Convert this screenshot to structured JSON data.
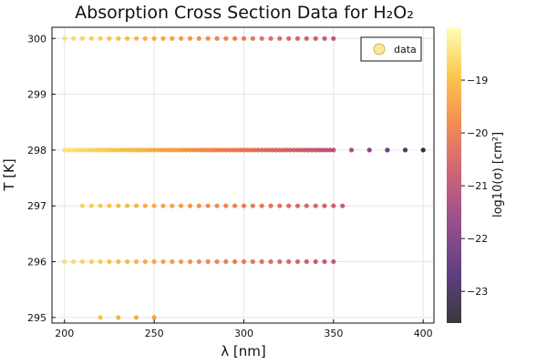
{
  "chart_data": {
    "type": "scatter",
    "title": "Absorption Cross Section Data for H₂O₂",
    "xlabel": "λ [nm]",
    "ylabel": "T [K]",
    "xlim": [
      193,
      406
    ],
    "ylim": [
      294.9,
      300.2
    ],
    "xticks": [
      "200",
      "250",
      "300",
      "350",
      "400"
    ],
    "yticks": [
      "295",
      "296",
      "297",
      "298",
      "299",
      "300"
    ],
    "legend": {
      "label": "data",
      "position": "top-right"
    },
    "colorbar": {
      "label": "log10(σ) [cm²]",
      "range": [
        -23.6,
        -18.0
      ],
      "ticks": [
        "-23",
        "-22",
        "-21",
        "-20",
        "-19"
      ],
      "colormap": [
        "#000004",
        "#320a5e",
        "#781c6d",
        "#bc3754",
        "#ed6925",
        "#fbb61a",
        "#fcffa4"
      ]
    },
    "grid": true,
    "series": [
      {
        "T": 300,
        "lambda_min": 200,
        "lambda_max": 350,
        "step": 5,
        "log_sigma_start": -18.5,
        "log_sigma_end": -20.9
      },
      {
        "T": 298,
        "lambda_min": 200,
        "lambda_max": 350,
        "step": 2,
        "log_sigma_start": -18.4,
        "log_sigma_end": -21.0
      },
      {
        "T": 298,
        "lambda_min": 360,
        "lambda_max": 400,
        "step": 10,
        "log_sigma_start": -21.3,
        "log_sigma_end": -23.5
      },
      {
        "T": 297,
        "lambda_min": 210,
        "lambda_max": 355,
        "step": 5,
        "log_sigma_start": -18.7,
        "log_sigma_end": -20.8
      },
      {
        "T": 296,
        "lambda_min": 200,
        "lambda_max": 350,
        "step": 5,
        "log_sigma_start": -18.5,
        "log_sigma_end": -20.9
      },
      {
        "T": 295,
        "lambda_min": 220,
        "lambda_max": 250,
        "step": 10,
        "log_sigma_start": -19.0,
        "log_sigma_end": -19.4
      }
    ]
  }
}
